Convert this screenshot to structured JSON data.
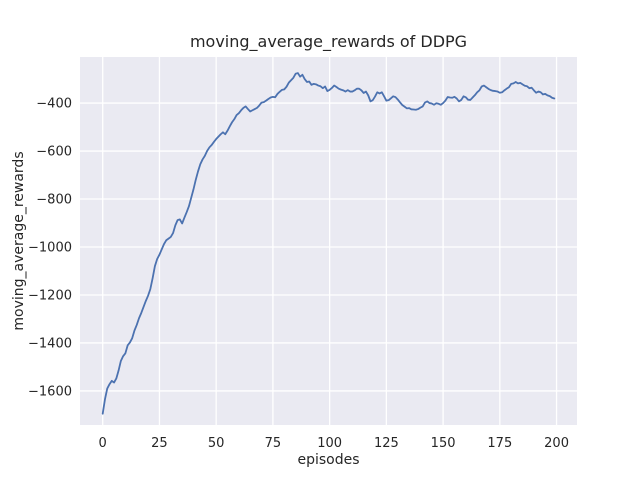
{
  "chart_data": {
    "type": "line",
    "title": "moving_average_rewards of DDPG",
    "xlabel": "episodes",
    "ylabel": "moving_average_rewards",
    "legend": "none",
    "grid": true,
    "xlim": [
      -10,
      209
    ],
    "ylim": [
      -1742,
      -208
    ],
    "x_ticks": {
      "values": [
        0,
        25,
        50,
        75,
        100,
        125,
        150,
        175,
        200
      ],
      "labels": [
        "0",
        "25",
        "50",
        "75",
        "100",
        "125",
        "150",
        "175",
        "200"
      ]
    },
    "y_ticks": {
      "values": [
        -400,
        -600,
        -800,
        -1000,
        -1200,
        -1400,
        -1600
      ],
      "labels": [
        "−400",
        "−600",
        "−800",
        "−1000",
        "−1200",
        "−1400",
        "−1600"
      ]
    },
    "style": {
      "plot_bg": "#eaeaf2",
      "grid_color": "#ffffff",
      "line_color": "#4c72b0",
      "text_color": "#262626",
      "figure_bg": "#ffffff"
    },
    "series": [
      {
        "name": "moving_average_rewards",
        "x": [
          0,
          1,
          2,
          3,
          4,
          5,
          6,
          7,
          8,
          9,
          10,
          11,
          12,
          13,
          14,
          15,
          16,
          17,
          18,
          19,
          20,
          21,
          22,
          23,
          24,
          25,
          26,
          27,
          28,
          29,
          30,
          31,
          32,
          33,
          34,
          35,
          36,
          37,
          38,
          39,
          40,
          41,
          42,
          43,
          44,
          45,
          46,
          47,
          48,
          49,
          50,
          51,
          52,
          53,
          54,
          55,
          56,
          57,
          58,
          59,
          60,
          61,
          62,
          63,
          64,
          65,
          66,
          67,
          68,
          69,
          70,
          71,
          72,
          73,
          74,
          75,
          76,
          77,
          78,
          79,
          80,
          81,
          82,
          83,
          84,
          85,
          86,
          87,
          88,
          89,
          90,
          91,
          92,
          93,
          94,
          95,
          96,
          97,
          98,
          99,
          100,
          101,
          102,
          103,
          104,
          105,
          106,
          107,
          108,
          109,
          110,
          111,
          112,
          113,
          114,
          115,
          116,
          117,
          118,
          119,
          120,
          121,
          122,
          123,
          124,
          125,
          126,
          127,
          128,
          129,
          130,
          131,
          132,
          133,
          134,
          135,
          136,
          137,
          138,
          139,
          140,
          141,
          142,
          143,
          144,
          145,
          146,
          147,
          148,
          149,
          150,
          151,
          152,
          153,
          154,
          155,
          156,
          157,
          158,
          159,
          160,
          161,
          162,
          163,
          164,
          165,
          166,
          167,
          168,
          169,
          170,
          171,
          172,
          173,
          174,
          175,
          176,
          177,
          178,
          179,
          180,
          181,
          182,
          183,
          184,
          185,
          186,
          187,
          188,
          189,
          190,
          191,
          192,
          193,
          194,
          195,
          196,
          197,
          198,
          199
        ],
        "values": [
          -1695,
          -1635,
          -1590,
          -1572,
          -1558,
          -1565,
          -1548,
          -1515,
          -1475,
          -1455,
          -1443,
          -1410,
          -1398,
          -1380,
          -1348,
          -1325,
          -1297,
          -1275,
          -1250,
          -1225,
          -1203,
          -1175,
          -1130,
          -1080,
          -1050,
          -1032,
          -1010,
          -988,
          -972,
          -965,
          -958,
          -942,
          -910,
          -888,
          -885,
          -902,
          -878,
          -855,
          -830,
          -795,
          -760,
          -720,
          -685,
          -655,
          -635,
          -620,
          -600,
          -585,
          -575,
          -562,
          -550,
          -540,
          -530,
          -522,
          -530,
          -515,
          -497,
          -480,
          -467,
          -450,
          -442,
          -430,
          -420,
          -414,
          -425,
          -435,
          -430,
          -425,
          -420,
          -410,
          -398,
          -396,
          -390,
          -383,
          -377,
          -374,
          -376,
          -362,
          -353,
          -345,
          -343,
          -332,
          -315,
          -305,
          -295,
          -278,
          -275,
          -290,
          -282,
          -300,
          -312,
          -310,
          -324,
          -320,
          -322,
          -327,
          -330,
          -338,
          -331,
          -350,
          -345,
          -337,
          -327,
          -333,
          -340,
          -344,
          -347,
          -352,
          -346,
          -352,
          -352,
          -347,
          -340,
          -340,
          -347,
          -358,
          -352,
          -368,
          -393,
          -388,
          -373,
          -355,
          -360,
          -355,
          -372,
          -390,
          -388,
          -380,
          -372,
          -375,
          -385,
          -397,
          -408,
          -415,
          -422,
          -421,
          -426,
          -427,
          -428,
          -425,
          -419,
          -414,
          -398,
          -393,
          -400,
          -402,
          -407,
          -401,
          -403,
          -407,
          -400,
          -390,
          -375,
          -377,
          -378,
          -374,
          -381,
          -393,
          -387,
          -372,
          -376,
          -386,
          -387,
          -377,
          -367,
          -355,
          -347,
          -331,
          -327,
          -334,
          -341,
          -346,
          -349,
          -350,
          -352,
          -357,
          -355,
          -347,
          -340,
          -334,
          -320,
          -318,
          -312,
          -318,
          -316,
          -322,
          -328,
          -330,
          -338,
          -336,
          -347,
          -357,
          -352,
          -355,
          -364,
          -362,
          -368,
          -371,
          -378,
          -381
        ]
      }
    ]
  }
}
